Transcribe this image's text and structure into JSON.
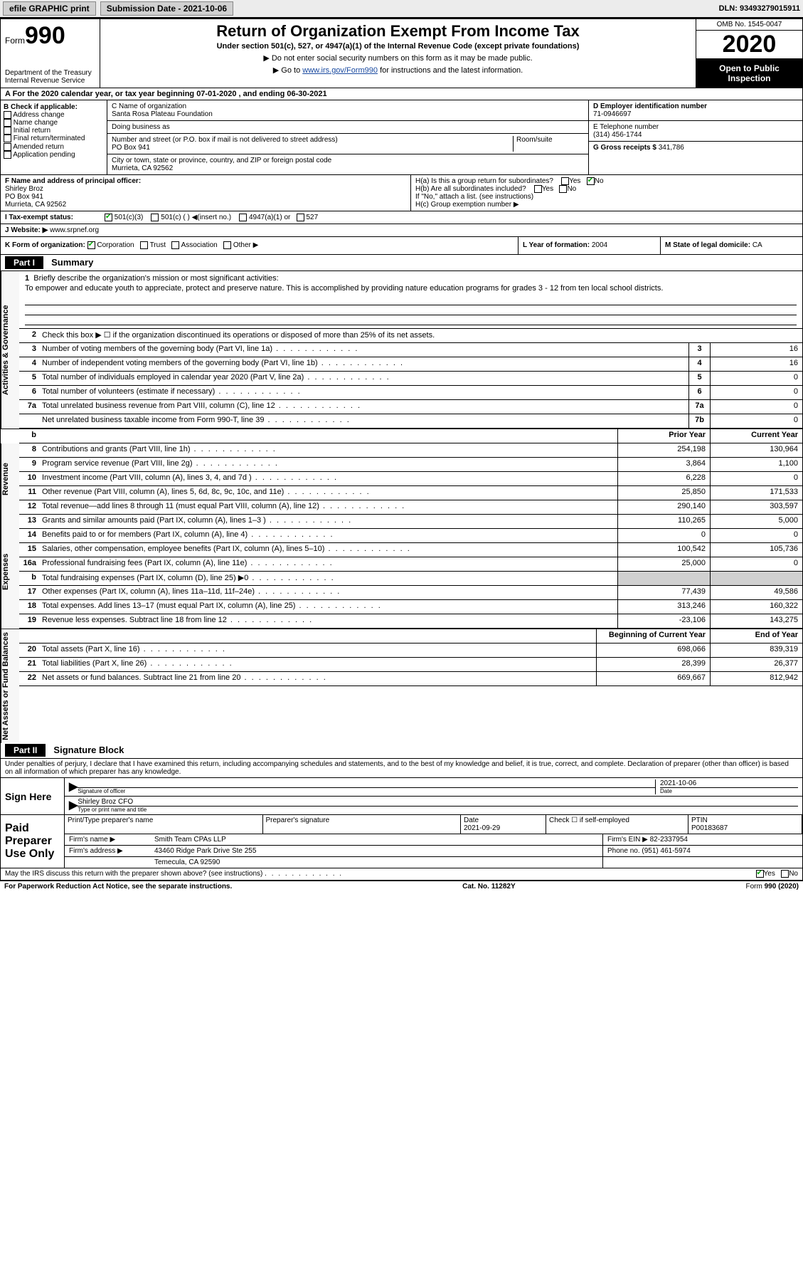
{
  "toolbar": {
    "efile": "efile GRAPHIC print",
    "submission_label": "Submission Date - 2021-10-06",
    "dln": "DLN: 93493279015911"
  },
  "header": {
    "form_prefix": "Form",
    "form_num": "990",
    "dept": "Department of the Treasury",
    "irs": "Internal Revenue Service",
    "title": "Return of Organization Exempt From Income Tax",
    "subtitle": "Under section 501(c), 527, or 4947(a)(1) of the Internal Revenue Code (except private foundations)",
    "note1": "▶ Do not enter social security numbers on this form as it may be made public.",
    "note2_pre": "▶ Go to ",
    "note2_link": "www.irs.gov/Form990",
    "note2_post": " for instructions and the latest information.",
    "omb": "OMB No. 1545-0047",
    "year": "2020",
    "inspect": "Open to Public Inspection"
  },
  "line_a": "A For the 2020 calendar year, or tax year beginning 07-01-2020   , and ending 06-30-2021",
  "section_b": {
    "header": "B Check if applicable:",
    "items": [
      "Address change",
      "Name change",
      "Initial return",
      "Final return/terminated",
      "Amended return",
      "Application pending"
    ]
  },
  "section_c": {
    "name_label": "C Name of organization",
    "name": "Santa Rosa Plateau Foundation",
    "dba_label": "Doing business as",
    "dba": "",
    "street_label": "Number and street (or P.O. box if mail is not delivered to street address)",
    "suite_label": "Room/suite",
    "street": "PO Box 941",
    "city_label": "City or town, state or province, country, and ZIP or foreign postal code",
    "city": "Murrieta, CA  92562"
  },
  "section_d": {
    "label": "D Employer identification number",
    "value": "71-0946697"
  },
  "section_e": {
    "label": "E Telephone number",
    "value": "(314) 456-1744"
  },
  "section_g": {
    "label": "G Gross receipts $",
    "value": "341,786"
  },
  "section_f": {
    "label": "F  Name and address of principal officer:",
    "name": "Shirley Broz",
    "street": "PO Box 941",
    "city": "Murrieta, CA  92562"
  },
  "section_h": {
    "a": "H(a)  Is this a group return for subordinates?",
    "a_yes": "Yes",
    "a_no": "No",
    "b": "H(b)  Are all subordinates included?",
    "b_note": "If \"No,\" attach a list. (see instructions)",
    "c": "H(c)  Group exemption number ▶"
  },
  "section_i": {
    "label": "I  Tax-exempt status:",
    "opts": [
      "501(c)(3)",
      "501(c) (  ) ◀(insert no.)",
      "4947(a)(1) or",
      "527"
    ]
  },
  "section_j": {
    "label": "J  Website: ▶",
    "value": "www.srpnef.org"
  },
  "section_k": {
    "label": "K Form of organization:",
    "opts": [
      "Corporation",
      "Trust",
      "Association",
      "Other ▶"
    ]
  },
  "section_l": {
    "label": "L Year of formation:",
    "value": "2004"
  },
  "section_m": {
    "label": "M State of legal domicile:",
    "value": "CA"
  },
  "part1": {
    "tag": "Part I",
    "title": "Summary"
  },
  "mission": {
    "num": "1",
    "label": "Briefly describe the organization's mission or most significant activities:",
    "text": "To empower and educate youth to appreciate, protect and preserve nature. This is accomplished by providing nature education programs for grades 3 - 12 from ten local school districts."
  },
  "line2": {
    "num": "2",
    "text": "Check this box ▶ ☐  if the organization discontinued its operations or disposed of more than 25% of its net assets."
  },
  "gov_lines": [
    {
      "num": "3",
      "desc": "Number of voting members of the governing body (Part VI, line 1a)",
      "box": "3",
      "v": "16"
    },
    {
      "num": "4",
      "desc": "Number of independent voting members of the governing body (Part VI, line 1b)",
      "box": "4",
      "v": "16"
    },
    {
      "num": "5",
      "desc": "Total number of individuals employed in calendar year 2020 (Part V, line 2a)",
      "box": "5",
      "v": "0"
    },
    {
      "num": "6",
      "desc": "Total number of volunteers (estimate if necessary)",
      "box": "6",
      "v": "0"
    },
    {
      "num": "7a",
      "desc": "Total unrelated business revenue from Part VIII, column (C), line 12",
      "box": "7a",
      "v": "0"
    },
    {
      "num": "",
      "desc": "Net unrelated business taxable income from Form 990-T, line 39",
      "box": "7b",
      "v": "0"
    }
  ],
  "pycy_hdr": {
    "b": "b",
    "py": "Prior Year",
    "cy": "Current Year"
  },
  "revenue_lines": [
    {
      "num": "8",
      "desc": "Contributions and grants (Part VIII, line 1h)",
      "py": "254,198",
      "cy": "130,964"
    },
    {
      "num": "9",
      "desc": "Program service revenue (Part VIII, line 2g)",
      "py": "3,864",
      "cy": "1,100"
    },
    {
      "num": "10",
      "desc": "Investment income (Part VIII, column (A), lines 3, 4, and 7d )",
      "py": "6,228",
      "cy": "0"
    },
    {
      "num": "11",
      "desc": "Other revenue (Part VIII, column (A), lines 5, 6d, 8c, 9c, 10c, and 11e)",
      "py": "25,850",
      "cy": "171,533"
    },
    {
      "num": "12",
      "desc": "Total revenue—add lines 8 through 11 (must equal Part VIII, column (A), line 12)",
      "py": "290,140",
      "cy": "303,597"
    }
  ],
  "expense_lines": [
    {
      "num": "13",
      "desc": "Grants and similar amounts paid (Part IX, column (A), lines 1–3 )",
      "py": "110,265",
      "cy": "5,000"
    },
    {
      "num": "14",
      "desc": "Benefits paid to or for members (Part IX, column (A), line 4)",
      "py": "0",
      "cy": "0"
    },
    {
      "num": "15",
      "desc": "Salaries, other compensation, employee benefits (Part IX, column (A), lines 5–10)",
      "py": "100,542",
      "cy": "105,736"
    },
    {
      "num": "16a",
      "desc": "Professional fundraising fees (Part IX, column (A), line 11e)",
      "py": "25,000",
      "cy": "0"
    },
    {
      "num": "b",
      "desc": "Total fundraising expenses (Part IX, column (D), line 25) ▶0",
      "py": "shade",
      "cy": "shade"
    },
    {
      "num": "17",
      "desc": "Other expenses (Part IX, column (A), lines 11a–11d, 11f–24e)",
      "py": "77,439",
      "cy": "49,586"
    },
    {
      "num": "18",
      "desc": "Total expenses. Add lines 13–17 (must equal Part IX, column (A), line 25)",
      "py": "313,246",
      "cy": "160,322"
    },
    {
      "num": "19",
      "desc": "Revenue less expenses. Subtract line 18 from line 12",
      "py": "-23,106",
      "cy": "143,275"
    }
  ],
  "net_hdr": {
    "py": "Beginning of Current Year",
    "cy": "End of Year"
  },
  "net_lines": [
    {
      "num": "20",
      "desc": "Total assets (Part X, line 16)",
      "py": "698,066",
      "cy": "839,319"
    },
    {
      "num": "21",
      "desc": "Total liabilities (Part X, line 26)",
      "py": "28,399",
      "cy": "26,377"
    },
    {
      "num": "22",
      "desc": "Net assets or fund balances. Subtract line 21 from line 20",
      "py": "669,667",
      "cy": "812,942"
    }
  ],
  "vert_labels": {
    "gov": "Activities & Governance",
    "rev": "Revenue",
    "exp": "Expenses",
    "net": "Net Assets or Fund Balances"
  },
  "part2": {
    "tag": "Part II",
    "title": "Signature Block"
  },
  "penalty": "Under penalties of perjury, I declare that I have examined this return, including accompanying schedules and statements, and to the best of my knowledge and belief, it is true, correct, and complete. Declaration of preparer (other than officer) is based on all information of which preparer has any knowledge.",
  "sign": {
    "here": "Sign Here",
    "sig_label": "Signature of officer",
    "date_label": "Date",
    "date": "2021-10-06",
    "name": "Shirley Broz CFO",
    "name_label": "Type or print name and title"
  },
  "prep": {
    "label": "Paid Preparer Use Only",
    "hdr": [
      "Print/Type preparer's name",
      "Preparer's signature",
      "Date",
      "",
      "PTIN"
    ],
    "date": "2021-09-29",
    "self": "Check ☐  if self-employed",
    "ptin": "P00183687",
    "firm_label": "Firm's name     ▶",
    "firm": "Smith Team CPAs LLP",
    "ein_label": "Firm's EIN ▶",
    "ein": "82-2337954",
    "addr_label": "Firm's address ▶",
    "addr": "43460 Ridge Park Drive Ste 255",
    "addr2": "Temecula, CA  92590",
    "phone_label": "Phone no.",
    "phone": "(951) 461-5974"
  },
  "discuss": {
    "text": "May the IRS discuss this return with the preparer shown above? (see instructions)",
    "yes": "Yes",
    "no": "No"
  },
  "footer": {
    "left": "For Paperwork Reduction Act Notice, see the separate instructions.",
    "mid": "Cat. No. 11282Y",
    "right": "Form 990 (2020)"
  }
}
